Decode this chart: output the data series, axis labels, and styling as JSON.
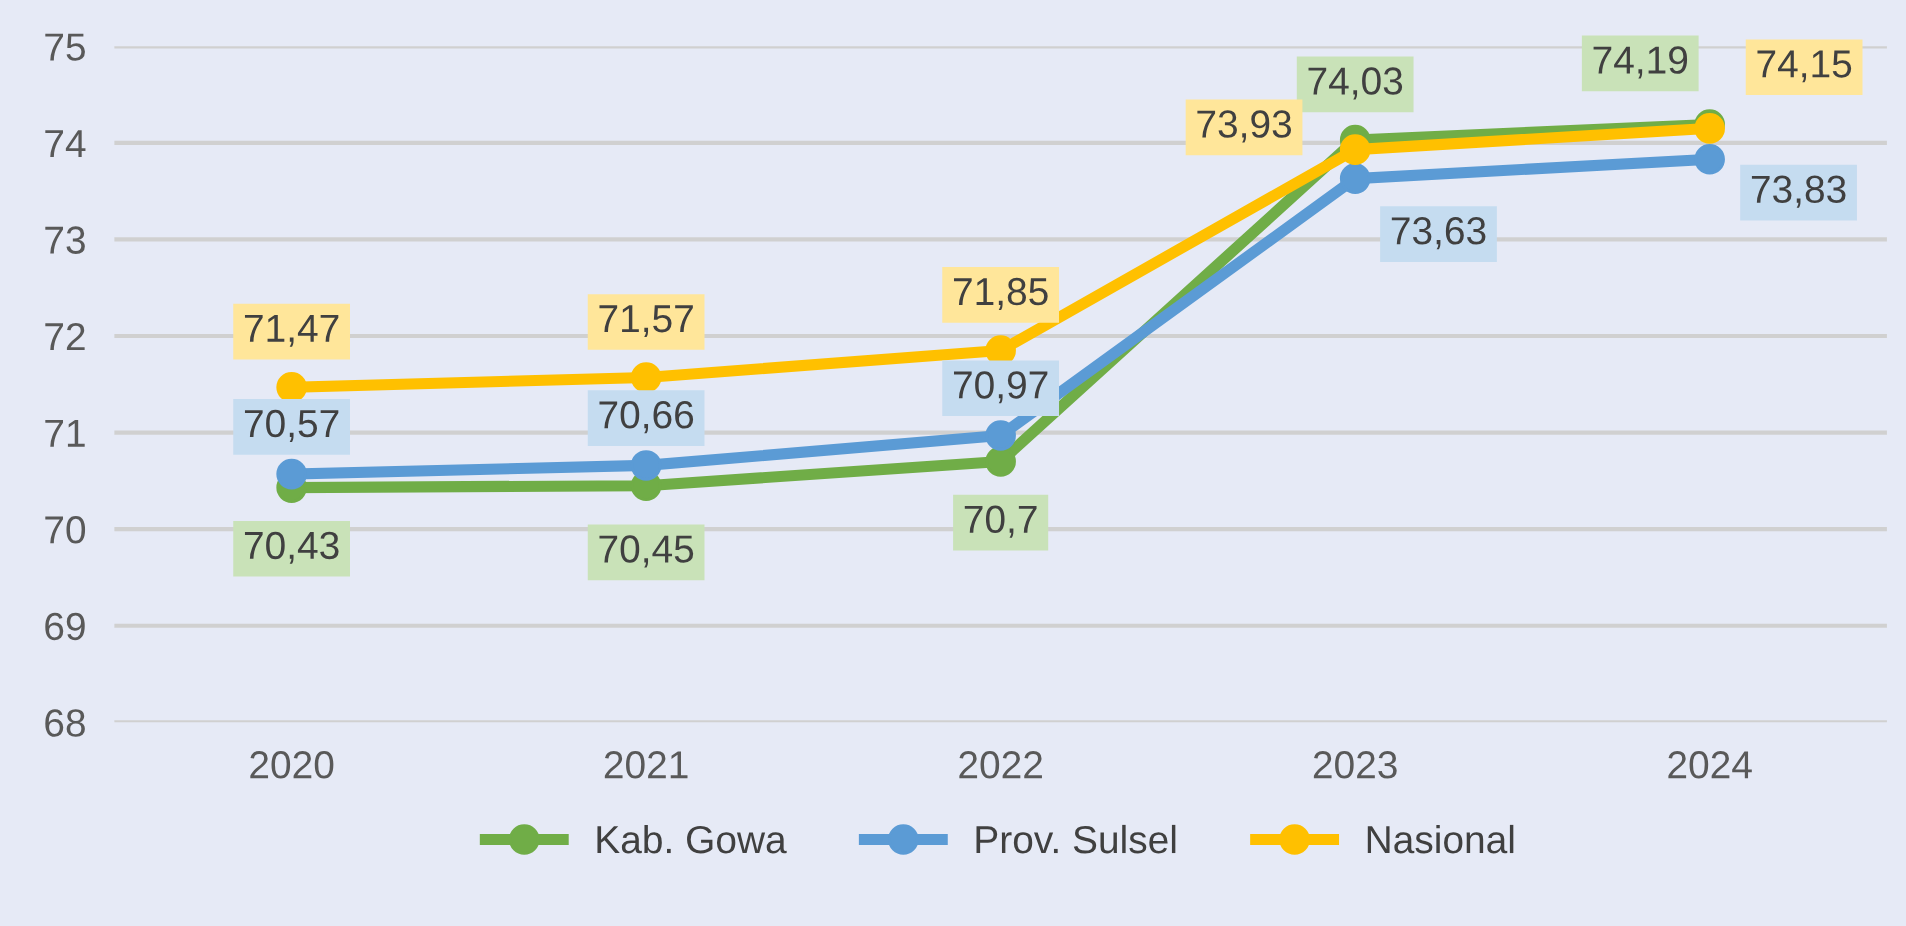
{
  "chart_data": {
    "type": "line",
    "categories": [
      "2020",
      "2021",
      "2022",
      "2023",
      "2024"
    ],
    "series": [
      {
        "name": "Kab. Gowa",
        "color": "#70ad47",
        "values": [
          70.43,
          70.45,
          70.7,
          74.03,
          74.19
        ],
        "value_labels": [
          "70,43",
          "70,45",
          "70,7",
          "74,03",
          "74,19"
        ]
      },
      {
        "name": "Prov. Sulsel",
        "color": "#5b9bd5",
        "values": [
          70.57,
          70.66,
          70.97,
          73.63,
          73.83
        ],
        "value_labels": [
          "70,57",
          "70,66",
          "70,97",
          "73,63",
          "73,83"
        ]
      },
      {
        "name": "Nasional",
        "color": "#ffc000",
        "values": [
          71.47,
          71.57,
          71.85,
          73.93,
          74.15
        ],
        "value_labels": [
          "71,47",
          "71,57",
          "71,85",
          "73,93",
          "74,15"
        ]
      }
    ],
    "ylim": [
      68,
      75
    ],
    "yticks": [
      68,
      69,
      70,
      71,
      72,
      73,
      74,
      75
    ],
    "grid": "y",
    "legend": "bottom",
    "marker": "circle",
    "line_style": "solid"
  }
}
